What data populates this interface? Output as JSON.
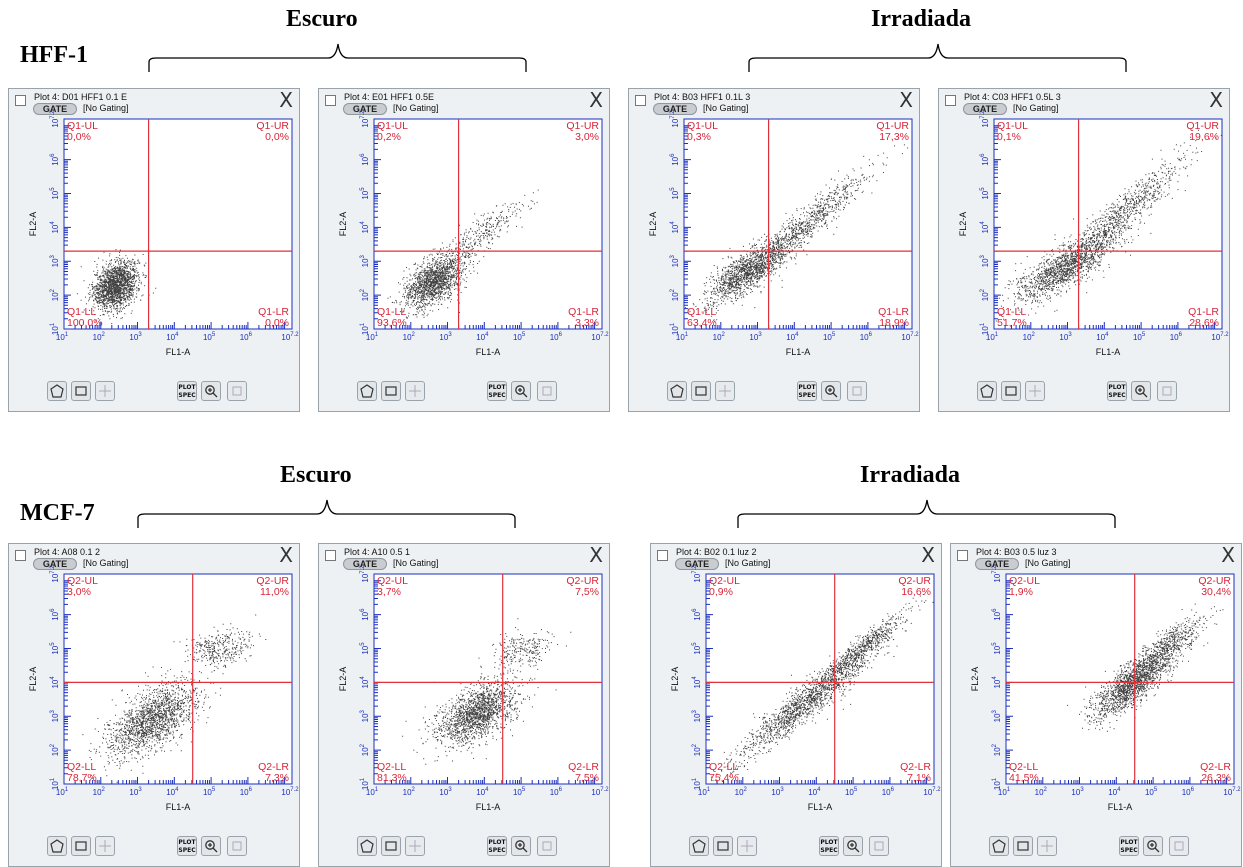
{
  "groups": [
    {
      "label": "HFF-1",
      "titles": [
        "Escuro",
        "Irradiada"
      ]
    },
    {
      "label": "MCF-7",
      "titles": [
        "Escuro",
        "Irradiada"
      ]
    }
  ],
  "colors": {
    "gate_line": "#e0303a",
    "axis": "#1a2fbf",
    "quad_text": "#d8263a",
    "dots": "#000000"
  },
  "icons": [
    "polygon-gate-icon",
    "rectangle-gate-icon",
    "quadrant-gate-icon",
    "plot-spec-icon",
    "zoom-in-icon",
    "zoom-fit-icon",
    "close-icon"
  ],
  "toolbar": {
    "spec_label": "PLOT\nSPEC",
    "gate_label": "GATE",
    "gating_label": "[No Gating]",
    "close_label": "X"
  },
  "chart_data": [
    {
      "type": "scatter",
      "title": "Plot 4: D01 HFF1 0.1 E",
      "xlabel": "FL1-A",
      "ylabel": "FL2-A",
      "xlim": [
        1,
        7.2
      ],
      "ylim": [
        1,
        7.2
      ],
      "tick_labels": [
        "10^1",
        "10^2",
        "10^3",
        "10^4",
        "10^5",
        "10^6",
        "10^7.2"
      ],
      "log_scale": true,
      "gate_x": 3.3,
      "gate_y": 3.3,
      "quadrants": {
        "UL": {
          "name": "Q1-UL",
          "value": "0,0%"
        },
        "UR": {
          "name": "Q1-UR",
          "value": "0,0%"
        },
        "LL": {
          "name": "Q1-LL",
          "value": "100,0%"
        },
        "LR": {
          "name": "Q1-LR",
          "value": "0,0%"
        }
      },
      "clusters": [
        {
          "cx": 2.4,
          "cy": 2.3,
          "sx": 0.3,
          "sy": 0.35,
          "rho": 0.3,
          "n": 1800
        }
      ]
    },
    {
      "type": "scatter",
      "title": "Plot 4: E01 HFF1 0.5E",
      "xlabel": "FL1-A",
      "ylabel": "FL2-A",
      "xlim": [
        1,
        7.2
      ],
      "ylim": [
        1,
        7.2
      ],
      "tick_labels": [
        "10^1",
        "10^2",
        "10^3",
        "10^4",
        "10^5",
        "10^6",
        "10^7.2"
      ],
      "log_scale": true,
      "gate_x": 3.3,
      "gate_y": 3.3,
      "quadrants": {
        "UL": {
          "name": "Q1-UL",
          "value": "0,2%"
        },
        "UR": {
          "name": "Q1-UR",
          "value": "3,0%"
        },
        "LL": {
          "name": "Q1-LL",
          "value": "93,6%"
        },
        "LR": {
          "name": "Q1-LR",
          "value": "3,3%"
        }
      },
      "clusters": [
        {
          "cx": 2.6,
          "cy": 2.4,
          "sx": 0.4,
          "sy": 0.38,
          "rho": 0.5,
          "n": 1500
        },
        {
          "cx": 3.8,
          "cy": 3.7,
          "sx": 0.7,
          "sy": 0.6,
          "rho": 0.9,
          "n": 350
        }
      ]
    },
    {
      "type": "scatter",
      "title": "Plot 4: B03 HFF1 0.1L 3",
      "xlabel": "FL1-A",
      "ylabel": "FL2-A",
      "xlim": [
        1,
        7.2
      ],
      "ylim": [
        1,
        7.2
      ],
      "tick_labels": [
        "10^1",
        "10^2",
        "10^3",
        "10^4",
        "10^5",
        "10^6",
        "10^7.2"
      ],
      "log_scale": true,
      "gate_x": 3.3,
      "gate_y": 3.3,
      "quadrants": {
        "UL": {
          "name": "Q1-UL",
          "value": "0,3%"
        },
        "UR": {
          "name": "Q1-UR",
          "value": "17,3%"
        },
        "LL": {
          "name": "Q1-LL",
          "value": "63,4%"
        },
        "LR": {
          "name": "Q1-LR",
          "value": "18,9%"
        }
      },
      "clusters": [
        {
          "cx": 2.7,
          "cy": 2.7,
          "sx": 0.55,
          "sy": 0.45,
          "rho": 0.75,
          "n": 1300
        },
        {
          "cx": 4.2,
          "cy": 4.0,
          "sx": 0.9,
          "sy": 0.85,
          "rho": 0.95,
          "n": 900
        }
      ]
    },
    {
      "type": "scatter",
      "title": "Plot 4: C03 HFF1 0.5L 3",
      "xlabel": "FL1-A",
      "ylabel": "FL2-A",
      "xlim": [
        1,
        7.2
      ],
      "ylim": [
        1,
        7.2
      ],
      "tick_labels": [
        "10^1",
        "10^2",
        "10^3",
        "10^4",
        "10^5",
        "10^6",
        "10^7.2"
      ],
      "log_scale": true,
      "gate_x": 3.3,
      "gate_y": 3.3,
      "quadrants": {
        "UL": {
          "name": "Q1-UL",
          "value": "0,1%"
        },
        "UR": {
          "name": "Q1-UR",
          "value": "19,6%"
        },
        "LL": {
          "name": "Q1-LL",
          "value": "51,7%"
        },
        "LR": {
          "name": "Q1-LR",
          "value": "28,6%"
        }
      },
      "clusters": [
        {
          "cx": 2.9,
          "cy": 2.8,
          "sx": 0.7,
          "sy": 0.5,
          "rho": 0.8,
          "n": 1300
        },
        {
          "cx": 4.3,
          "cy": 4.2,
          "sx": 0.9,
          "sy": 0.9,
          "rho": 0.93,
          "n": 1000
        }
      ]
    },
    {
      "type": "scatter",
      "title": "Plot 4: A08 0.1 2",
      "xlabel": "FL1-A",
      "ylabel": "FL2-A",
      "xlim": [
        1,
        7.2
      ],
      "ylim": [
        1,
        7.2
      ],
      "tick_labels": [
        "10^1",
        "10^2",
        "10^3",
        "10^4",
        "10^5",
        "10^6",
        "10^7.2"
      ],
      "log_scale": true,
      "gate_x": 4.5,
      "gate_y": 4.0,
      "quadrants": {
        "UL": {
          "name": "Q2-UL",
          "value": "3,0%"
        },
        "UR": {
          "name": "Q2-UR",
          "value": "11,0%"
        },
        "LL": {
          "name": "Q2-LL",
          "value": "78,7%"
        },
        "LR": {
          "name": "Q2-LR",
          "value": "7,3%"
        }
      },
      "clusters": [
        {
          "cx": 3.4,
          "cy": 2.9,
          "sx": 0.6,
          "sy": 0.55,
          "rho": 0.6,
          "n": 1700
        },
        {
          "cx": 5.2,
          "cy": 5.0,
          "sx": 0.45,
          "sy": 0.3,
          "rho": 0.3,
          "n": 350
        }
      ]
    },
    {
      "type": "scatter",
      "title": "Plot 4: A10 0.5 1",
      "xlabel": "FL1-A",
      "ylabel": "FL2-A",
      "xlim": [
        1,
        7.2
      ],
      "ylim": [
        1,
        7.2
      ],
      "tick_labels": [
        "10^1",
        "10^2",
        "10^3",
        "10^4",
        "10^5",
        "10^6",
        "10^7.2"
      ],
      "log_scale": true,
      "gate_x": 4.5,
      "gate_y": 4.0,
      "quadrants": {
        "UL": {
          "name": "Q2-UL",
          "value": "3,7%"
        },
        "UR": {
          "name": "Q2-UR",
          "value": "7,5%"
        },
        "LL": {
          "name": "Q2-LL",
          "value": "81,3%"
        },
        "LR": {
          "name": "Q2-LR",
          "value": "7,5%"
        }
      },
      "clusters": [
        {
          "cx": 3.8,
          "cy": 3.1,
          "sx": 0.55,
          "sy": 0.45,
          "rho": 0.55,
          "n": 1700
        },
        {
          "cx": 5.0,
          "cy": 5.0,
          "sx": 0.4,
          "sy": 0.3,
          "rho": 0.3,
          "n": 250
        }
      ]
    },
    {
      "type": "scatter",
      "title": "Plot 4: B02 0.1 luz 2",
      "xlabel": "FL1-A",
      "ylabel": "FL2-A",
      "xlim": [
        1,
        7.2
      ],
      "ylim": [
        1,
        7.2
      ],
      "tick_labels": [
        "10^1",
        "10^2",
        "10^3",
        "10^4",
        "10^5",
        "10^6",
        "10^7.2"
      ],
      "log_scale": true,
      "gate_x": 4.5,
      "gate_y": 4.0,
      "quadrants": {
        "UL": {
          "name": "Q2-UL",
          "value": "0,9%"
        },
        "UR": {
          "name": "Q2-UR",
          "value": "16,6%"
        },
        "LL": {
          "name": "Q2-LL",
          "value": "75,4%"
        },
        "LR": {
          "name": "Q2-LR",
          "value": "7,1%"
        }
      },
      "clusters": [
        {
          "cx": 3.8,
          "cy": 3.5,
          "sx": 1.0,
          "sy": 0.9,
          "rho": 0.95,
          "n": 1600
        },
        {
          "cx": 5.2,
          "cy": 5.0,
          "sx": 0.6,
          "sy": 0.55,
          "rho": 0.95,
          "n": 500
        }
      ]
    },
    {
      "type": "scatter",
      "title": "Plot 4: B03 0.5 luz 3",
      "xlabel": "FL1-A",
      "ylabel": "FL2-A",
      "xlim": [
        1,
        7.2
      ],
      "ylim": [
        1,
        7.2
      ],
      "tick_labels": [
        "10^1",
        "10^2",
        "10^3",
        "10^4",
        "10^5",
        "10^6",
        "10^7.2"
      ],
      "log_scale": true,
      "gate_x": 4.5,
      "gate_y": 4.0,
      "quadrants": {
        "UL": {
          "name": "Q2-UL",
          "value": "1,9%"
        },
        "UR": {
          "name": "Q2-UR",
          "value": "30,4%"
        },
        "LL": {
          "name": "Q2-LL",
          "value": "41,5%"
        },
        "LR": {
          "name": "Q2-LR",
          "value": "26,3%"
        }
      },
      "clusters": [
        {
          "cx": 4.4,
          "cy": 3.9,
          "sx": 0.55,
          "sy": 0.5,
          "rho": 0.8,
          "n": 1400
        },
        {
          "cx": 5.3,
          "cy": 5.0,
          "sx": 0.55,
          "sy": 0.5,
          "rho": 0.85,
          "n": 700
        }
      ]
    }
  ]
}
